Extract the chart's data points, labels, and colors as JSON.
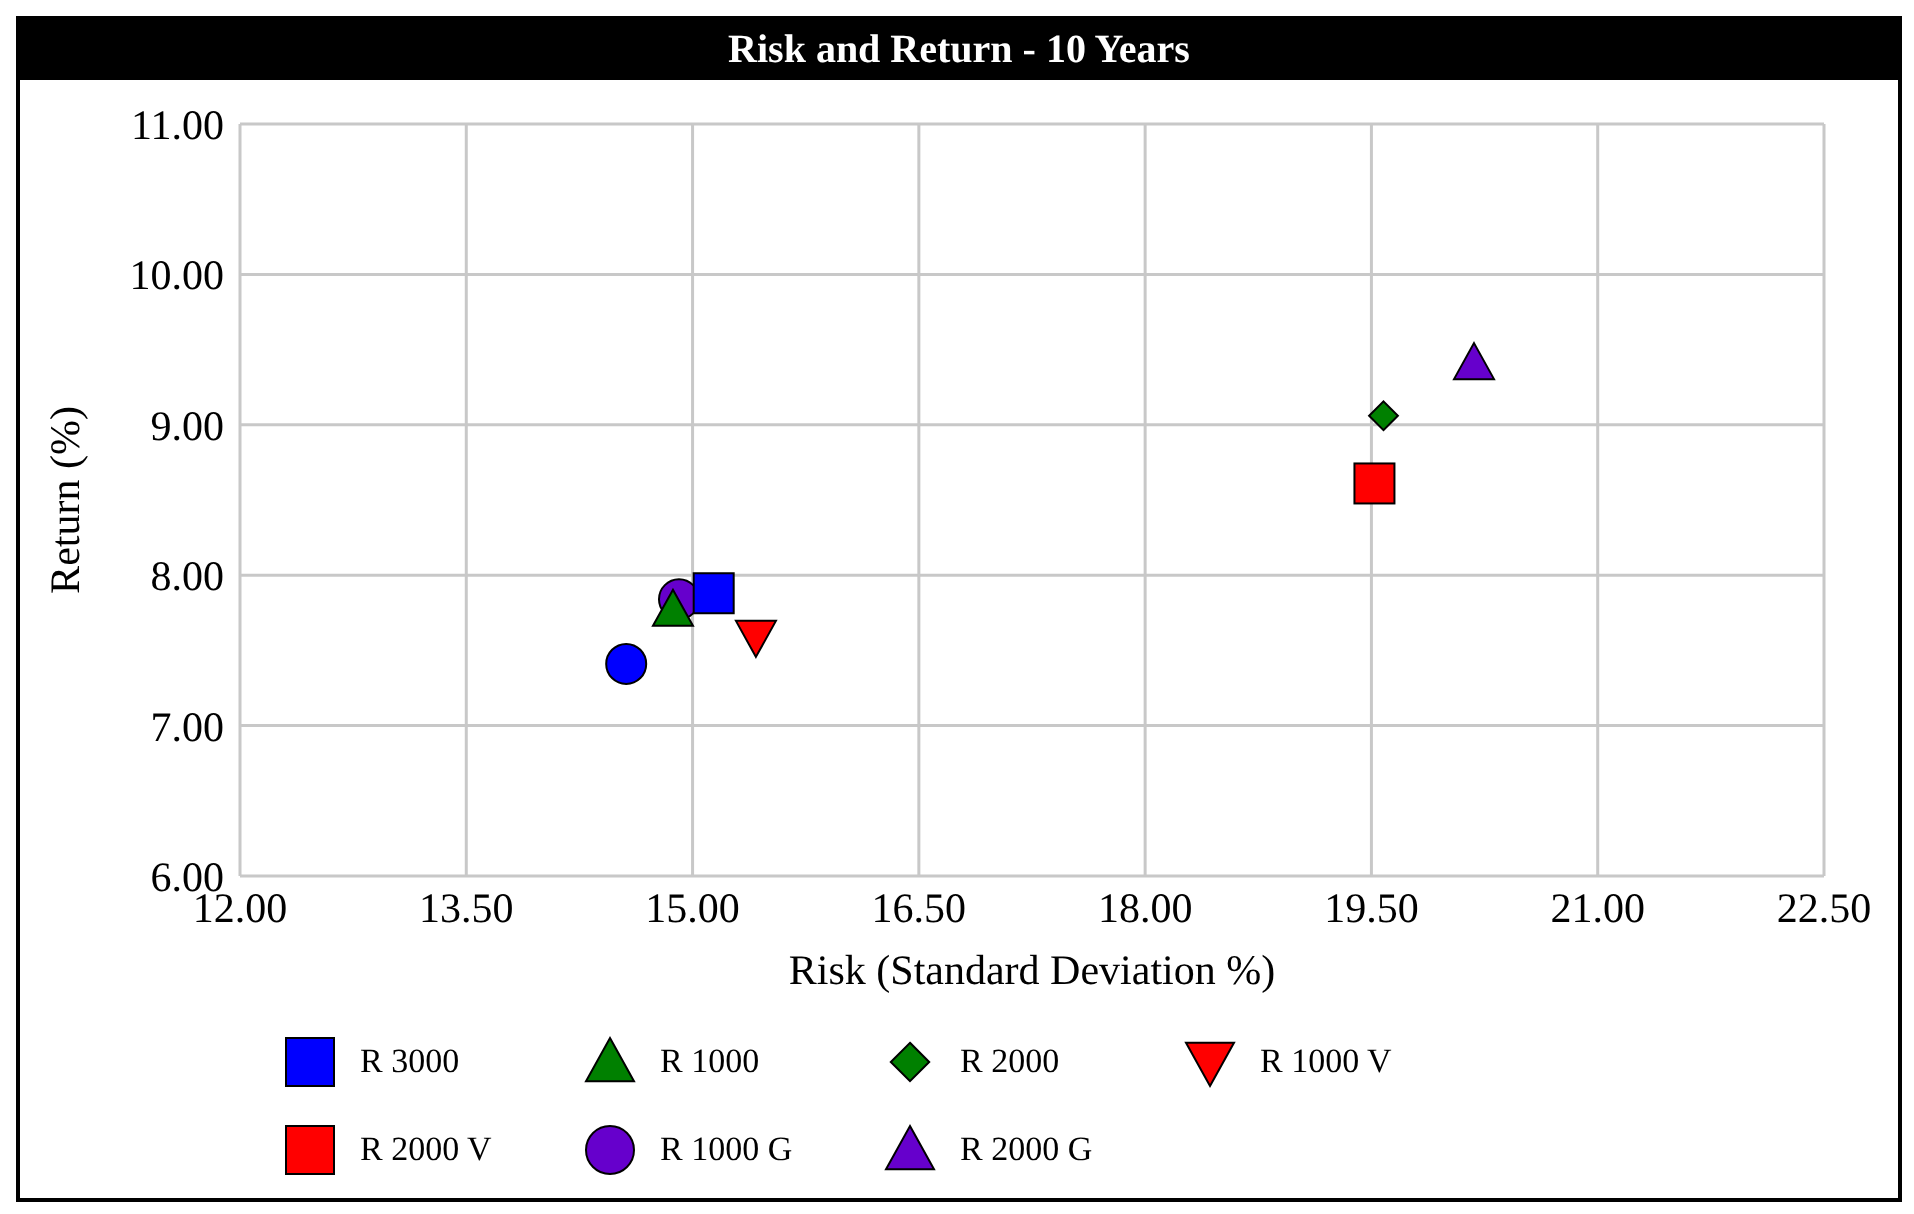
{
  "chart_data": {
    "type": "scatter",
    "title": "Risk and Return - 10 Years",
    "xlabel": "Risk (Standard Deviation %)",
    "ylabel": "Return (%)",
    "xlim": [
      12,
      22.5
    ],
    "xticks": [
      {
        "value": 12,
        "label": "12.00"
      },
      {
        "value": 13.5,
        "label": "13.50"
      },
      {
        "value": 15,
        "label": "15.00"
      },
      {
        "value": 16.5,
        "label": "16.50"
      },
      {
        "value": 18,
        "label": "18.00"
      },
      {
        "value": 19.5,
        "label": "19.50"
      },
      {
        "value": 21,
        "label": "21.00"
      },
      {
        "value": 22.5,
        "label": "22.50"
      }
    ],
    "ylim": [
      6,
      11
    ],
    "yticks": [
      {
        "value": 6,
        "label": "6.00"
      },
      {
        "value": 7,
        "label": "7.00"
      },
      {
        "value": 8,
        "label": "8.00"
      },
      {
        "value": 9,
        "label": "9.00"
      },
      {
        "value": 10,
        "label": "10.00"
      },
      {
        "value": 11,
        "label": "11.00"
      }
    ],
    "grid": true,
    "legend": "bottom",
    "series": [
      {
        "name": "R 3000",
        "color": "#0000ff",
        "marker": "square",
        "x": [
          15.14
        ],
        "values": [
          7.88
        ]
      },
      {
        "color": "#0000ff",
        "marker": "circle",
        "x": [
          14.56
        ],
        "values": [
          7.41
        ]
      },
      {
        "name": "R 1000",
        "color": "#008000",
        "marker": "triangle",
        "x": [
          14.87
        ],
        "values": [
          7.77
        ]
      },
      {
        "name": "R 2000",
        "color": "#008000",
        "marker": "diamond",
        "x": [
          19.58
        ],
        "values": [
          9.06
        ]
      },
      {
        "name": "R 1000 V",
        "color": "#ff0000",
        "marker": "triangle-down",
        "x": [
          15.42
        ],
        "values": [
          7.59
        ]
      },
      {
        "name": "R 2000 V",
        "color": "#ff0000",
        "marker": "square",
        "x": [
          19.52
        ],
        "values": [
          8.61
        ]
      },
      {
        "name": "R 1000 G",
        "color": "#6600cc",
        "marker": "circle",
        "x": [
          14.91
        ],
        "values": [
          7.84
        ]
      },
      {
        "name": "R 2000 G",
        "color": "#6600cc",
        "marker": "triangle",
        "x": [
          20.18
        ],
        "values": [
          9.41
        ]
      }
    ]
  }
}
